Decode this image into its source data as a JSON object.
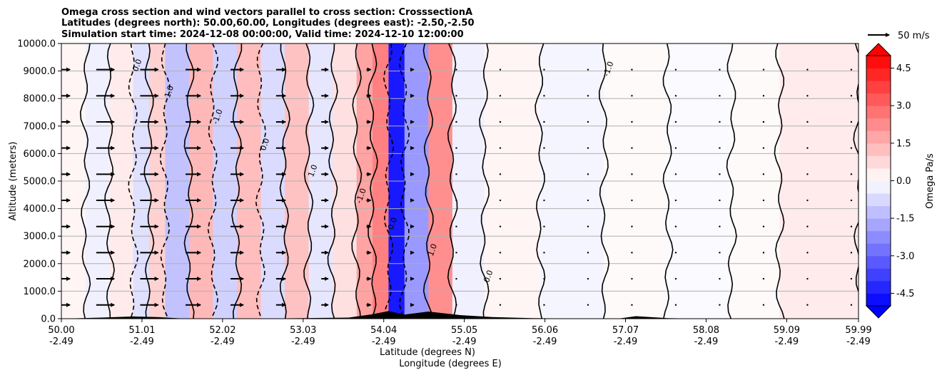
{
  "chart_data": {
    "type": "heatmap",
    "title_lines": [
      "Omega cross section and wind vectors parallel to cross section: CrosssectionA",
      "Latitudes (degrees north): 50.00,60.00, Longitudes (degrees east): -2.50,-2.50",
      "Simulation start time: 2024-12-08 00:00:00, Valid time: 2024-12-10 12:00:00"
    ],
    "ylabel": "Altitude (meters)",
    "xlabel_lines": [
      "Latitude (degrees N)",
      "Longitude (degrees E)"
    ],
    "ylim": [
      0,
      10000
    ],
    "xlim": [
      50.0,
      59.99
    ],
    "y_ticks": [
      "0.0",
      "1000.0",
      "2000.0",
      "3000.0",
      "4000.0",
      "5000.0",
      "6000.0",
      "7000.0",
      "8000.0",
      "9000.0",
      "10000.0"
    ],
    "x_ticks": [
      {
        "lat": "50.00",
        "lon": "-2.49"
      },
      {
        "lat": "51.01",
        "lon": "-2.49"
      },
      {
        "lat": "52.02",
        "lon": "-2.49"
      },
      {
        "lat": "53.03",
        "lon": "-2.49"
      },
      {
        "lat": "54.04",
        "lon": "-2.49"
      },
      {
        "lat": "55.05",
        "lon": "-2.49"
      },
      {
        "lat": "56.06",
        "lon": "-2.49"
      },
      {
        "lat": "57.07",
        "lon": "-2.49"
      },
      {
        "lat": "58.08",
        "lon": "-2.49"
      },
      {
        "lat": "59.09",
        "lon": "-2.49"
      },
      {
        "lat": "59.99",
        "lon": "-2.49"
      }
    ],
    "grid": "horizontal",
    "colorbar": {
      "label": "Omega Pa/s",
      "min": -5.0,
      "max": 5.0,
      "ticks": [
        "-4.5",
        "-3.0",
        "-1.5",
        "0.0",
        "1.5",
        "3.0",
        "4.5"
      ],
      "colormap": "bwr",
      "extend": "both"
    },
    "contour_levels": [
      -1.0,
      0.0,
      1.0
    ],
    "contour_labels": [
      "0.0",
      "1.0",
      "-1.0",
      "0.0",
      "1.0",
      "-1.0",
      "0.0",
      "1.0",
      "0.0",
      "-1.0"
    ],
    "omega_profile": [
      {
        "lat": 50.0,
        "v": 0.2
      },
      {
        "lat": 50.3,
        "v": -0.3
      },
      {
        "lat": 50.6,
        "v": 0.4
      },
      {
        "lat": 50.9,
        "v": -0.6
      },
      {
        "lat": 51.1,
        "v": 0.9
      },
      {
        "lat": 51.3,
        "v": -1.2
      },
      {
        "lat": 51.6,
        "v": 1.4
      },
      {
        "lat": 51.9,
        "v": -0.9
      },
      {
        "lat": 52.2,
        "v": 1.3
      },
      {
        "lat": 52.5,
        "v": -0.7
      },
      {
        "lat": 52.8,
        "v": 1.2
      },
      {
        "lat": 53.1,
        "v": -0.5
      },
      {
        "lat": 53.4,
        "v": 0.6
      },
      {
        "lat": 53.7,
        "v": 1.8
      },
      {
        "lat": 53.9,
        "v": 2.5
      },
      {
        "lat": 54.1,
        "v": -4.5
      },
      {
        "lat": 54.3,
        "v": -2.0
      },
      {
        "lat": 54.6,
        "v": 2.2
      },
      {
        "lat": 54.9,
        "v": -0.3
      },
      {
        "lat": 55.3,
        "v": 0.2
      },
      {
        "lat": 56.0,
        "v": -0.2
      },
      {
        "lat": 56.8,
        "v": 0.1
      },
      {
        "lat": 57.6,
        "v": -0.1
      },
      {
        "lat": 58.4,
        "v": 0.1
      },
      {
        "lat": 59.0,
        "v": 0.4
      },
      {
        "lat": 59.99,
        "v": 0.1
      }
    ],
    "wind_vectors": {
      "reference": "50 m/s",
      "columns": [
        {
          "lat": 50.0,
          "u": 40
        },
        {
          "lat": 50.55,
          "u": 42
        },
        {
          "lat": 51.1,
          "u": 42
        },
        {
          "lat": 51.65,
          "u": 35
        },
        {
          "lat": 52.2,
          "u": 30
        },
        {
          "lat": 52.75,
          "u": 22
        },
        {
          "lat": 53.3,
          "u": 16
        },
        {
          "lat": 53.85,
          "u": 10
        },
        {
          "lat": 54.4,
          "u": 6
        },
        {
          "lat": 54.95,
          "u": 4
        },
        {
          "lat": 55.5,
          "u": 3
        },
        {
          "lat": 56.05,
          "u": 2
        },
        {
          "lat": 56.6,
          "u": 2
        },
        {
          "lat": 57.15,
          "u": 2
        },
        {
          "lat": 57.7,
          "u": 2
        },
        {
          "lat": 58.25,
          "u": 3
        },
        {
          "lat": 58.8,
          "u": 3
        },
        {
          "lat": 59.35,
          "u": 3
        },
        {
          "lat": 59.9,
          "u": 4
        }
      ]
    },
    "terrain": [
      {
        "lat": 50.0,
        "h": 0
      },
      {
        "lat": 50.5,
        "h": 40
      },
      {
        "lat": 50.9,
        "h": 80
      },
      {
        "lat": 51.2,
        "h": 60
      },
      {
        "lat": 51.5,
        "h": 10
      },
      {
        "lat": 52.5,
        "h": 0
      },
      {
        "lat": 53.6,
        "h": 40
      },
      {
        "lat": 53.9,
        "h": 160
      },
      {
        "lat": 54.1,
        "h": 280
      },
      {
        "lat": 54.3,
        "h": 150
      },
      {
        "lat": 54.6,
        "h": 260
      },
      {
        "lat": 55.0,
        "h": 130
      },
      {
        "lat": 55.4,
        "h": 60
      },
      {
        "lat": 55.9,
        "h": 20
      },
      {
        "lat": 56.5,
        "h": 0
      },
      {
        "lat": 57.0,
        "h": 10
      },
      {
        "lat": 57.2,
        "h": 90
      },
      {
        "lat": 57.6,
        "h": 20
      },
      {
        "lat": 58.0,
        "h": 0
      },
      {
        "lat": 59.99,
        "h": 0
      }
    ]
  }
}
